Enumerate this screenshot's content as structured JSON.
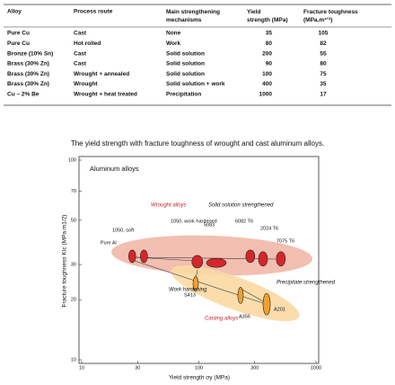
{
  "table": {
    "columns": [
      "Alloy",
      "Process route",
      "Main strengthening mechanisms",
      "Yield strength (MPa)",
      "Fracture toughness (MPa.m¹ᐟ²)"
    ],
    "rows": [
      [
        "Pure Cu",
        "Cast",
        "None",
        35,
        105
      ],
      [
        "Pure Cu",
        "Hot rolled",
        "Work",
        80,
        82
      ],
      [
        "Bronze (10% Sn)",
        "Cast",
        "Solid solution",
        200,
        55
      ],
      [
        "Brass (30% Zn)",
        "Cast",
        "Solid solution",
        90,
        80
      ],
      [
        "Brass (30% Zn)",
        "Wrought + annealed",
        "Solid solution",
        100,
        75
      ],
      [
        "Brass (30% Zn)",
        "Wrought",
        "Solid solution + work",
        400,
        35
      ],
      [
        "Cu – 2% Be",
        "Wrought + heat treated",
        "Precipitation",
        1000,
        17
      ]
    ]
  },
  "caption": "The yield strength with fracture toughness of wrought and cast aluminum alloys.",
  "chart_data": {
    "type": "scatter",
    "title": "Aluminum alloys",
    "x_label": "Yield strength σy (MPa)",
    "y_label": "Fracture toughness KIc (MPa.m1/2)",
    "xscale": "log",
    "yscale": "log",
    "xlim": [
      10,
      1000
    ],
    "xticks": [
      10,
      30,
      100,
      300,
      1000
    ],
    "ylim": [
      10,
      100
    ],
    "yticks": [
      10,
      20,
      30,
      50,
      70,
      100
    ],
    "series": [
      {
        "color": "#d7262b",
        "labels": [
          "Pure Al",
          "1050, soft",
          "1050, work hardened",
          "5083",
          "6082 T6",
          "2024 T6",
          "7075 T6"
        ],
        "x": [
          27,
          34,
          97,
          141,
          275,
          353,
          501
        ],
        "values": [
          33,
          33,
          31,
          30.6,
          33,
          32,
          32
        ]
      },
      {
        "color": "#f0a030",
        "labels": [
          "S413",
          "A356",
          "A201"
        ],
        "x": [
          94,
          227,
          379
        ],
        "values": [
          24,
          21,
          19
        ]
      }
    ],
    "annotations": [
      "Wrought alloys",
      "Solid solution strengthened",
      "Work hardening",
      "Precipitate strengthened",
      "Casting alloys"
    ]
  }
}
